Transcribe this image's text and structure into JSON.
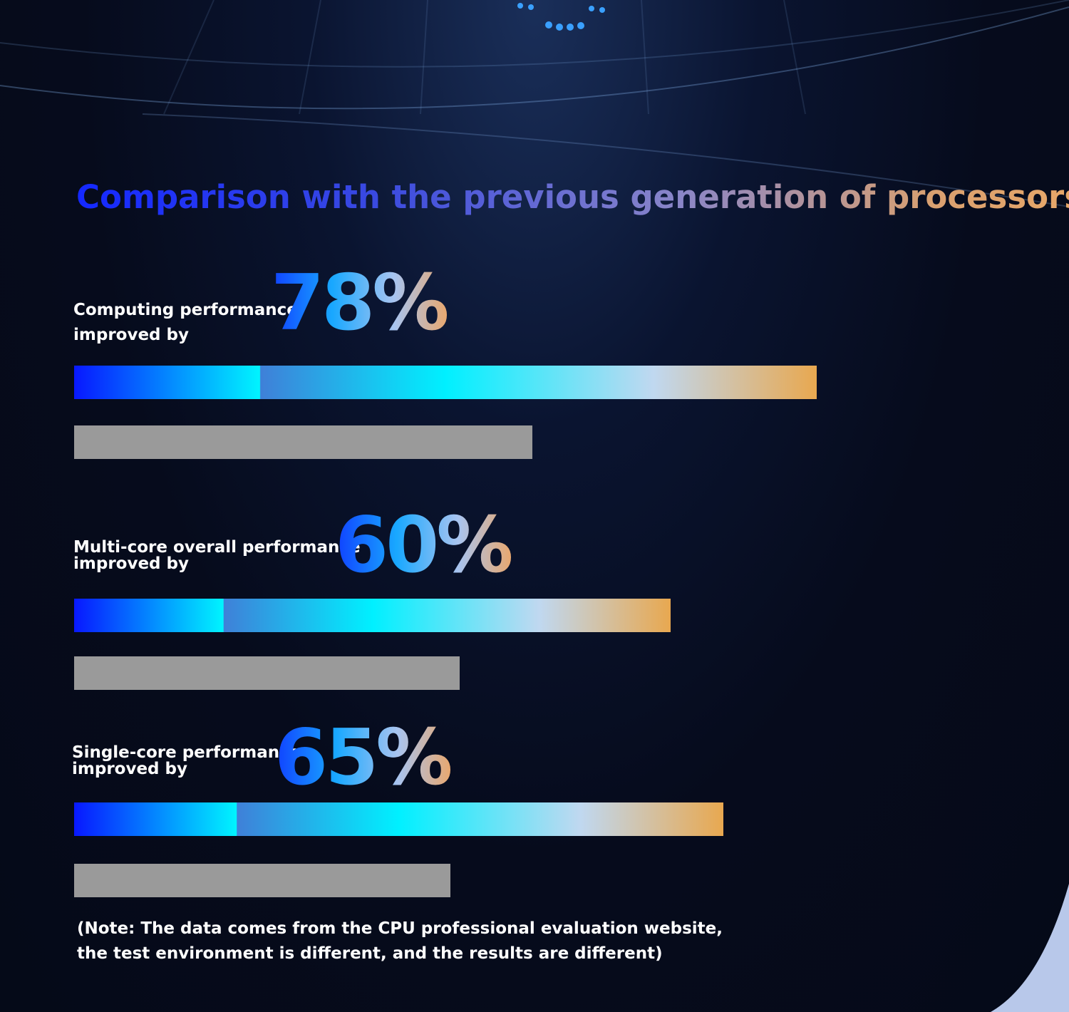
{
  "title": "Comparison with the previous generation of processors",
  "items": [
    {
      "label_lines": [
        "Computing performance",
        "improved by"
      ],
      "value": "78%"
    },
    {
      "label_lines": [
        "Multi-core overall performance",
        "improved by"
      ],
      "value": "60%"
    },
    {
      "label_lines": [
        "Single-core performance",
        "improved by"
      ],
      "value": "65%"
    }
  ],
  "note": [
    "(Note: The data comes from the CPU professional evaluation website,",
    "the test environment is different, and the results are different)"
  ]
}
